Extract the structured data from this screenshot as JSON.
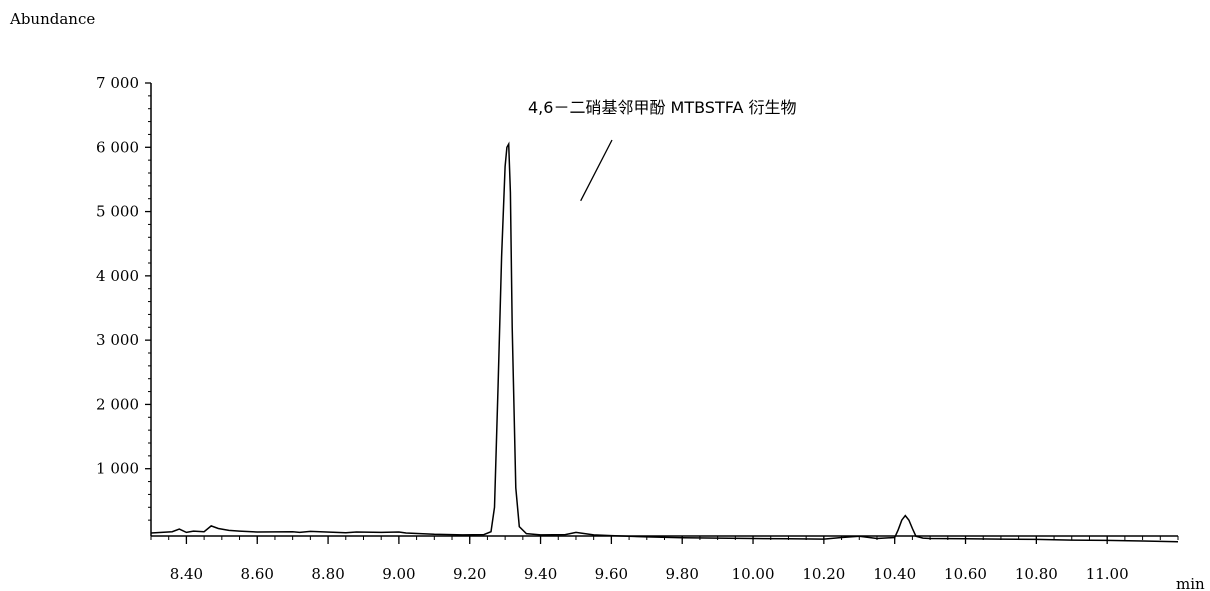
{
  "chart_data": {
    "type": "line",
    "ylabel": "Abundance",
    "xlabel": "min",
    "xlim": [
      8.3,
      11.2
    ],
    "ylim": [
      -200,
      7000
    ],
    "x_ticks": [
      "8.40",
      "8.60",
      "8.80",
      "9.00",
      "9.20",
      "9.40",
      "9.60",
      "9.80",
      "10.00",
      "10.20",
      "10.40",
      "10.60",
      "10.80",
      "11.00"
    ],
    "y_ticks": [
      "7 000",
      "6 000",
      "5 000",
      "4 000",
      "3 000",
      "2 000",
      "1 000"
    ],
    "grid": false,
    "annotation": {
      "text": "4,6－二硝基邻甲酚 MTBSTFA 衍生物",
      "points_to_x": 9.31,
      "points_to_y": 4700
    },
    "series": [
      {
        "x": [
          8.3,
          8.36,
          8.38,
          8.4,
          8.42,
          8.45,
          8.47,
          8.49,
          8.52,
          8.55,
          8.6,
          8.7,
          8.72,
          8.75,
          8.85,
          8.88,
          8.95,
          9.0,
          9.02,
          9.1,
          9.18,
          9.24,
          9.26,
          9.27,
          9.28,
          9.29,
          9.3,
          9.305,
          9.31,
          9.315,
          9.32,
          9.33,
          9.34,
          9.36,
          9.4,
          9.47,
          9.5,
          9.55,
          9.6,
          9.7,
          9.8,
          9.9,
          10.0,
          10.1,
          10.2,
          10.25,
          10.3,
          10.35,
          10.4,
          10.41,
          10.42,
          10.43,
          10.44,
          10.45,
          10.46,
          10.48,
          10.5,
          10.6,
          10.7,
          10.8,
          10.9,
          11.0,
          11.1,
          11.2
        ],
        "y": [
          0,
          20,
          60,
          10,
          30,
          20,
          110,
          70,
          40,
          30,
          15,
          20,
          10,
          25,
          5,
          15,
          10,
          15,
          0,
          -20,
          -30,
          -25,
          20,
          400,
          2300,
          4300,
          5700,
          6000,
          6050,
          5300,
          3200,
          700,
          100,
          -10,
          -30,
          -25,
          10,
          -30,
          -40,
          -60,
          -75,
          -80,
          -85,
          -90,
          -95,
          -70,
          -50,
          -85,
          -70,
          50,
          200,
          270,
          200,
          70,
          -50,
          -80,
          -85,
          -90,
          -95,
          -100,
          -110,
          -115,
          -125,
          -135
        ]
      }
    ]
  }
}
